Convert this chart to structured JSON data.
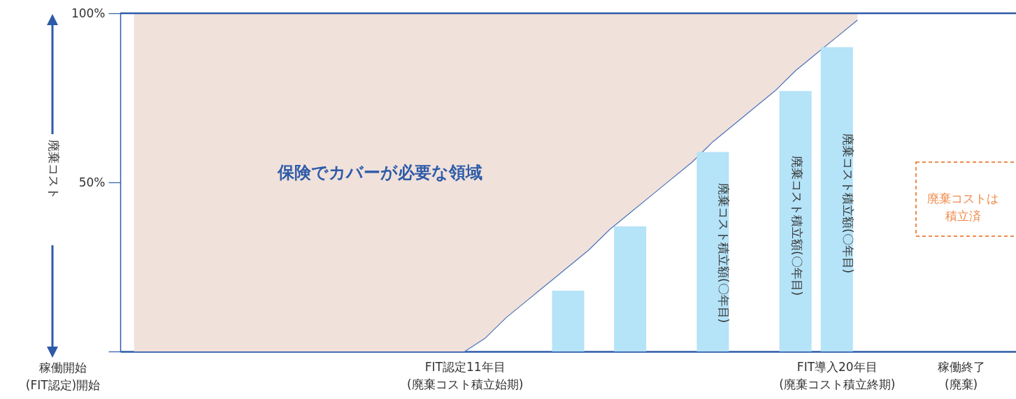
{
  "chart_data": {
    "type": "bar",
    "ylabel": "廃棄コスト",
    "categories": [
      null,
      null,
      null,
      null,
      null,
      null,
      null,
      null,
      null,
      null,
      null,
      null,
      null,
      null,
      null,
      null,
      "FIT認定11年目\n(廃棄コスト積立始期)",
      null,
      null,
      null,
      null,
      null,
      null,
      null,
      null,
      null,
      null,
      null,
      null,
      null,
      null,
      null,
      null,
      null,
      "FIT導入20年目\n(廃棄コスト積立終期)",
      null,
      null,
      null,
      null,
      null,
      "稼働終了\n(廃棄)",
      null,
      null
    ],
    "ylim": [
      0,
      100
    ],
    "yticks": [
      {
        "value": 0,
        "label": null
      },
      {
        "value": 50,
        "label": "50%"
      },
      {
        "value": 100,
        "label": "100%"
      }
    ],
    "series": [
      {
        "type": "line",
        "color": "#4a72b8",
        "values": [
          null,
          null,
          null,
          null,
          null,
          null,
          null,
          null,
          null,
          null,
          null,
          null,
          null,
          null,
          null,
          null,
          0,
          4,
          10,
          15,
          20,
          25,
          30,
          36,
          41,
          46,
          51,
          56,
          62,
          67,
          72,
          77,
          83,
          88,
          93,
          98,
          null,
          null,
          null,
          null,
          null,
          null,
          null
        ],
        "lower": [
          0,
          0,
          0,
          0,
          0,
          0,
          0,
          0,
          0,
          0,
          0,
          0,
          0,
          0,
          0,
          0,
          0,
          4,
          10,
          15,
          20,
          25,
          30,
          36,
          41,
          46,
          51,
          56,
          62,
          67,
          72,
          77,
          83,
          88,
          93,
          98,
          null,
          null,
          null,
          null,
          null,
          null,
          null
        ],
        "upper": [
          100,
          100,
          100,
          100,
          100,
          100,
          100,
          100,
          100,
          100,
          100,
          100,
          100,
          100,
          100,
          100,
          100,
          100,
          100,
          100,
          100,
          100,
          100,
          100,
          100,
          100,
          100,
          100,
          100,
          100,
          100,
          100,
          100,
          100,
          100,
          100,
          null,
          null,
          null,
          null,
          null,
          null,
          null
        ]
      },
      {
        "color": "#b5e3f8",
        "values": [
          null,
          null,
          null,
          null,
          null,
          null,
          null,
          null,
          null,
          null,
          null,
          null,
          null,
          null,
          null,
          null,
          null,
          null,
          null,
          null,
          null,
          18,
          null,
          null,
          37,
          null,
          null,
          null,
          59,
          null,
          null,
          null,
          77,
          null,
          90,
          null,
          null,
          null,
          null,
          null,
          null,
          null,
          null
        ]
      }
    ],
    "ref_lines": [
      {
        "axis": "y",
        "value": 100,
        "color": "#2d5ba8"
      }
    ],
    "annotations": [
      "保険でカバーが必要な領域",
      "廃棄コストは積立済",
      "廃棄コスト積立額(〇年目)",
      "廃棄コスト積立額(〇年目)",
      "廃棄コスト積立額(〇年目)",
      "稼働開始\n(FIT認定)開始"
    ]
  }
}
